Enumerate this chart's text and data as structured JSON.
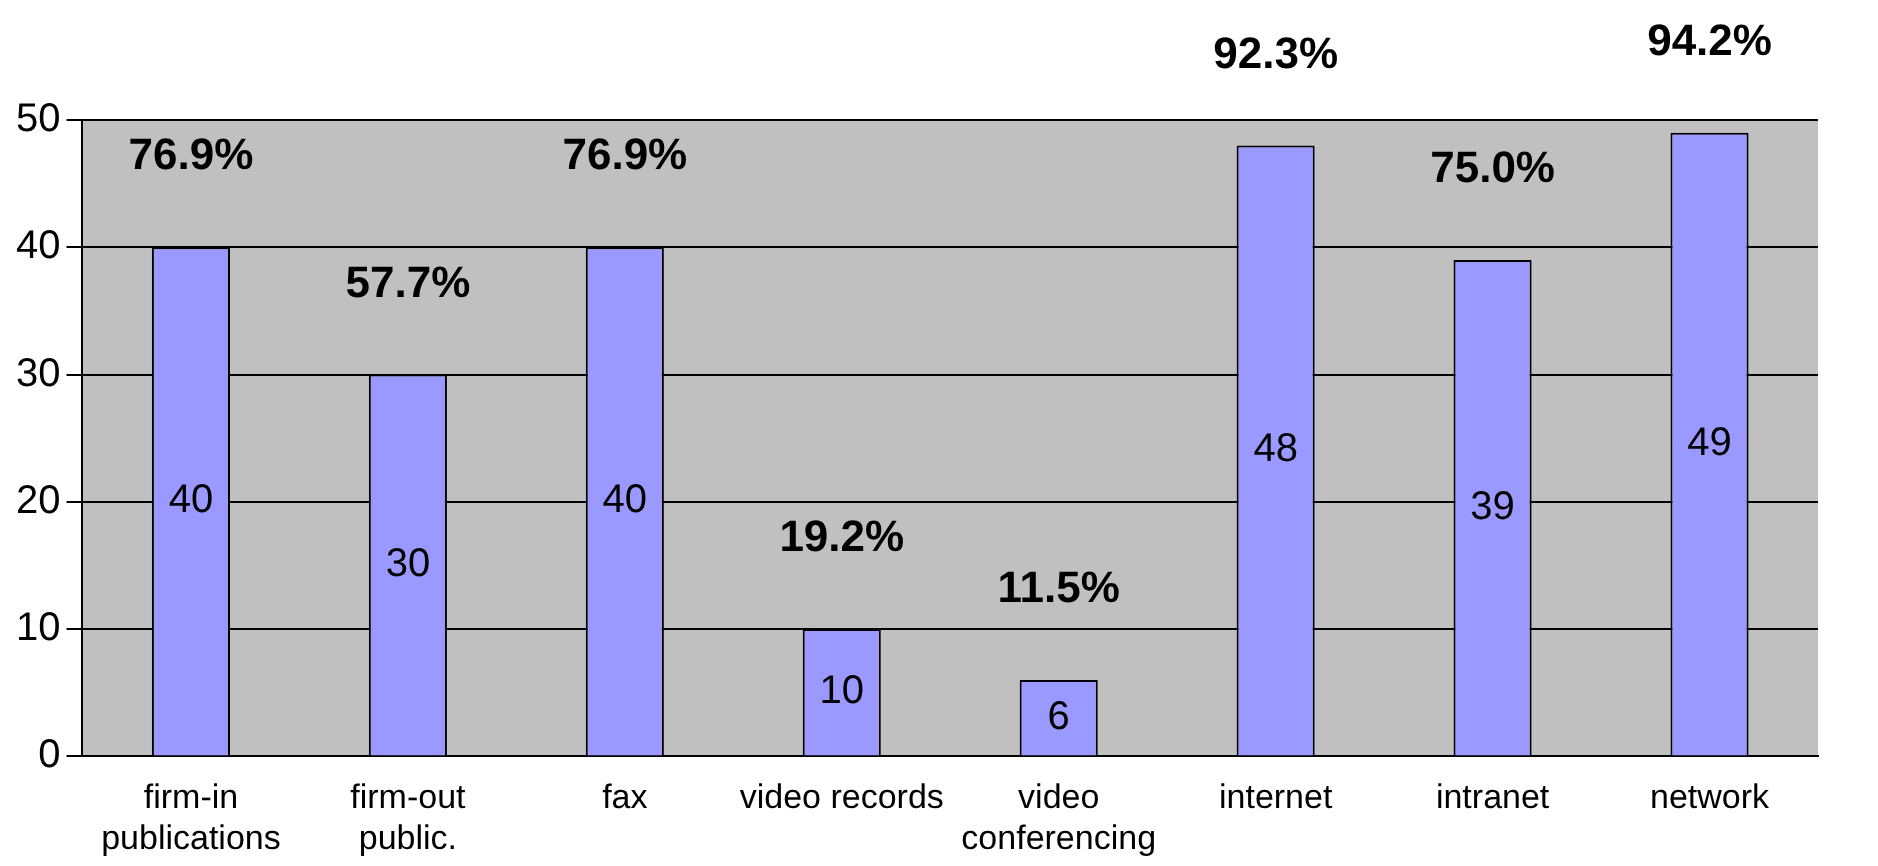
{
  "chart_data": {
    "type": "bar",
    "categories": [
      "firm-in\npublications",
      "firm-out\npublic.",
      "fax",
      "video records",
      "video\nconferencing",
      "internet",
      "intranet",
      "network"
    ],
    "values": [
      40,
      30,
      40,
      10,
      6,
      48,
      39,
      49
    ],
    "color": "#9999ff",
    "ylim": [
      0,
      50
    ],
    "yticks": [
      0,
      10,
      20,
      30,
      40,
      50
    ],
    "grid": "y",
    "data_labels": true,
    "legend": false,
    "annotations": [
      {
        "text": "76.9%",
        "x": "firm-in\npublications",
        "y": 40
      },
      {
        "text": "57.7%",
        "x": "firm-out\npublic.",
        "y": 30
      },
      {
        "text": "76.9%",
        "x": "fax",
        "y": 40
      },
      {
        "text": "19.2%",
        "x": "video records",
        "y": 10
      },
      {
        "text": "11.5%",
        "x": "video\nconferencing",
        "y": 6
      },
      {
        "text": "92.3%",
        "x": "internet",
        "y": 48
      },
      {
        "text": "75.0%",
        "x": "intranet",
        "y": 39
      },
      {
        "text": "94.2%",
        "x": "network",
        "y": 49
      }
    ]
  }
}
